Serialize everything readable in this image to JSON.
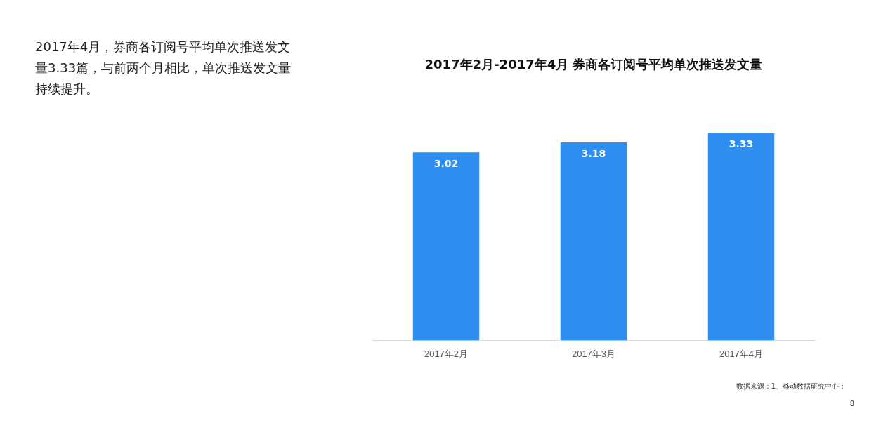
{
  "chart_data": {
    "type": "bar",
    "title": "2017年2月-2017年4月 券商各订阅号平均单次推送发文量",
    "categories": [
      "2017年2月",
      "2017年3月",
      "2017年4月"
    ],
    "values": [
      3.02,
      3.18,
      3.33
    ],
    "color": "#2e8ff0",
    "data_labels": true,
    "grid": false,
    "legend": false,
    "tick_labels": "x",
    "annotations": [
      "2017年4月，券商各订阅号平均单次推送发文量3.33篇，与前两个月相比，单次推送发文量持续提升。",
      "数据来源：1、移动数据研究中心；",
      "8"
    ]
  }
}
